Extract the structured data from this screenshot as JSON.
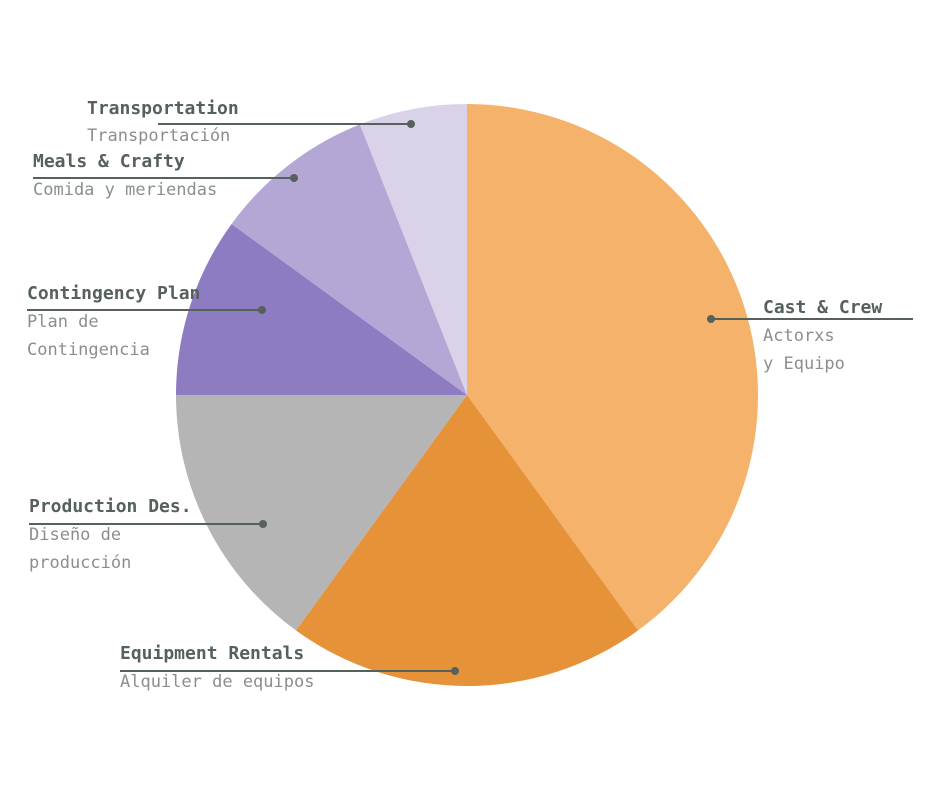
{
  "chart_data": {
    "type": "pie",
    "start": "12 o'clock",
    "direction": "clockwise",
    "categories": [
      "Cast & Crew",
      "Equipment Rentals",
      "Production Design",
      "Contingency Plan",
      "Meals & Crafty",
      "Transportation"
    ],
    "labels": [
      {
        "title": "Cast & Crew",
        "subtitle": [
          "Actorxs",
          "y Equipo"
        ]
      },
      {
        "title": "Equipment Rentals",
        "subtitle": [
          "Alquiler de equipos"
        ]
      },
      {
        "title": "Production Des.",
        "subtitle": [
          "Diseño de",
          "producción"
        ]
      },
      {
        "title": "Contingency Plan",
        "subtitle": [
          "Plan de",
          "Contingencia"
        ]
      },
      {
        "title": "Meals & Crafty",
        "subtitle": [
          "Comida y meriendas"
        ]
      },
      {
        "title": "Transportation",
        "subtitle": [
          "Transportación"
        ]
      }
    ],
    "values": [
      40,
      20,
      15,
      10,
      9,
      6
    ],
    "colors": [
      "#f5b26b",
      "#e69238",
      "#b5b5b5",
      "#8e7cc3",
      "#b4a7d6",
      "#d9d2e9"
    ],
    "label_line_color": "#56615c",
    "legend": "none"
  }
}
